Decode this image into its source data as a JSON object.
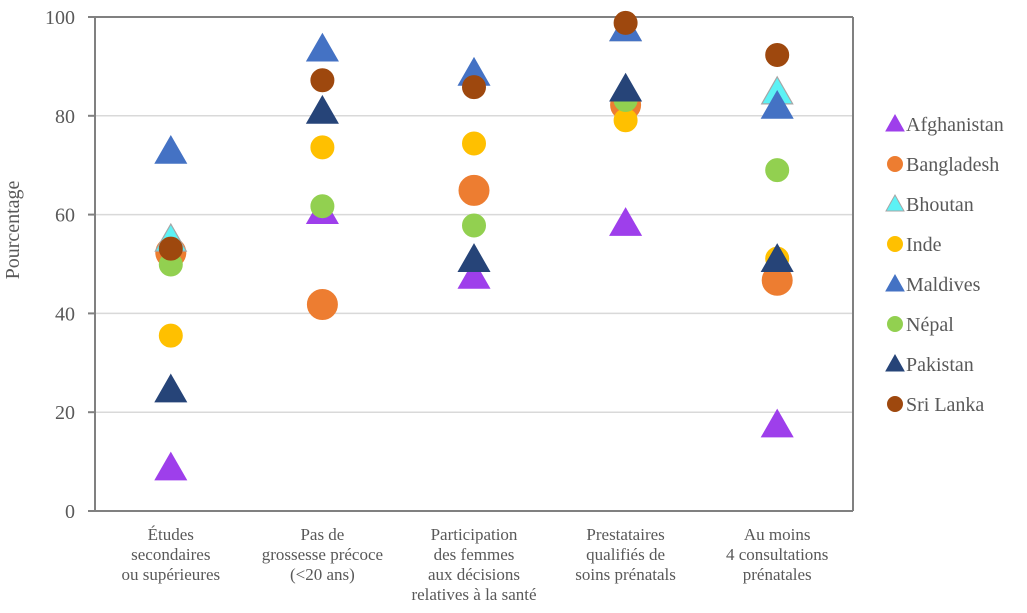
{
  "chart_data": {
    "type": "scatter",
    "title": "",
    "xlabel": "",
    "ylabel": "Pourcentage",
    "ylim": [
      0,
      100
    ],
    "yticks": [
      0,
      20,
      40,
      60,
      80,
      100
    ],
    "grid": true,
    "legend_position": "right",
    "categories": [
      [
        "Études",
        "secondaires",
        "ou supérieures"
      ],
      [
        "Pas de",
        "grossesse précoce",
        "(<20 ans)"
      ],
      [
        "Participation",
        "des femmes",
        "aux décisions",
        "relatives à la santé"
      ],
      [
        "Prestataires",
        "qualifiés de",
        "soins prénatals"
      ],
      [
        "Au moins",
        "4 consultations",
        "prénatales"
      ]
    ],
    "series": [
      {
        "name": "Afghanistan",
        "marker": "triangle",
        "color": "#9E3FEB",
        "stroke": "#9E3FEB",
        "large": false,
        "values": [
          8.5,
          60.4,
          47.3,
          58.0,
          17.2
        ]
      },
      {
        "name": "Bangladesh",
        "marker": "circle",
        "color": "#ED7D31",
        "stroke": "#ED7D31",
        "large": true,
        "values": [
          52.3,
          41.8,
          64.9,
          82.2,
          46.7
        ]
      },
      {
        "name": "Bhoutan",
        "marker": "triangle",
        "color": "#5CF2F5",
        "stroke": "#A6A6A6",
        "large": false,
        "values": [
          54.8,
          null,
          null,
          97.4,
          84.6
        ]
      },
      {
        "name": "Inde",
        "marker": "circle",
        "color": "#FFC000",
        "stroke": "#FFC000",
        "large": false,
        "values": [
          35.5,
          73.6,
          74.4,
          79.1,
          51.1
        ]
      },
      {
        "name": "Maldives",
        "marker": "triangle",
        "color": "#4472C4",
        "stroke": "#4472C4",
        "large": false,
        "values": [
          72.6,
          93.3,
          88.4,
          97.4,
          81.7
        ]
      },
      {
        "name": "Népal",
        "marker": "circle",
        "color": "#92D050",
        "stroke": "#92D050",
        "large": false,
        "values": [
          49.9,
          61.7,
          57.8,
          83.2,
          69.0
        ]
      },
      {
        "name": "Pakistan",
        "marker": "triangle",
        "color": "#264478",
        "stroke": "#264478",
        "large": false,
        "values": [
          24.3,
          80.7,
          50.7,
          85.2,
          50.7
        ]
      },
      {
        "name": "Sri Lanka",
        "marker": "circle",
        "color": "#9E480E",
        "stroke": "#9E480E",
        "large": false,
        "values": [
          53.1,
          87.2,
          85.8,
          98.8,
          92.3
        ]
      }
    ]
  },
  "colors": {
    "axis": "#808080",
    "grid": "#D9D9D9",
    "text": "#595959"
  }
}
